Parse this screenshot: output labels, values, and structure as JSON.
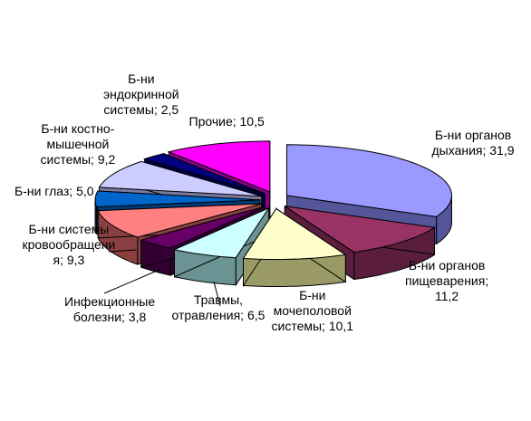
{
  "chart_data": {
    "type": "pie",
    "style": "3d-exploded",
    "title": "",
    "slices": [
      {
        "label": [
          "Б-ни органов",
          "дыхания; 31,9"
        ],
        "value": 31.9,
        "color": "#9999ff",
        "side": "#55559a"
      },
      {
        "label": [
          "Б-ни органов",
          "пищеварения;",
          "11,2"
        ],
        "value": 11.2,
        "color": "#993366",
        "side": "#5a1e3c"
      },
      {
        "label": [
          "Б-ни",
          "мочеполовой",
          "системы; 10,1"
        ],
        "value": 10.1,
        "color": "#ffffcc",
        "side": "#9a9a66"
      },
      {
        "label": [
          "Травмы,",
          "отравления; 6,5"
        ],
        "value": 6.5,
        "color": "#ccffff",
        "side": "#6b9393"
      },
      {
        "label": [
          "Инфекционные",
          "болезни; 3,8"
        ],
        "value": 3.8,
        "color": "#660066",
        "side": "#330033"
      },
      {
        "label": [
          "Б-ни системы",
          "кровообращени",
          "я; 9,3"
        ],
        "value": 9.3,
        "color": "#ff8080",
        "side": "#8a4040"
      },
      {
        "label": [
          "Б-ни глаз; 5,0"
        ],
        "value": 5.0,
        "color": "#0066cc",
        "side": "#003b78"
      },
      {
        "label": [
          "Б-ни костно-",
          "мышечной",
          "системы; 9,2"
        ],
        "value": 9.2,
        "color": "#ccccff",
        "side": "#7a7aa0"
      },
      {
        "label": [
          "Б-ни",
          "эндокринной",
          "системы; 2,5"
        ],
        "value": 2.5,
        "color": "#000080",
        "side": "#000040"
      },
      {
        "label": [
          "Прочие; 10,5"
        ],
        "value": 10.5,
        "color": "#ff00ff",
        "side": "#8a008a"
      }
    ]
  }
}
